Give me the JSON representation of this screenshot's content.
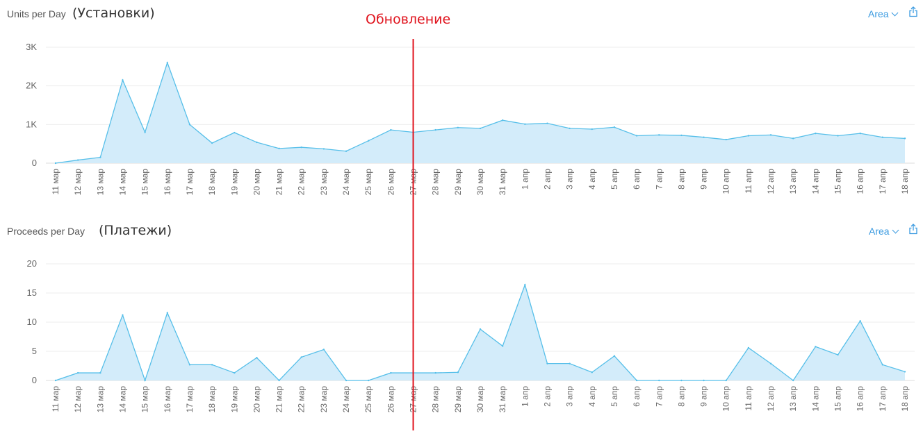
{
  "annotation": {
    "label": "Обновление",
    "at_category": "27 мар",
    "color": "#e0131d"
  },
  "controls": {
    "area_label": "Area"
  },
  "colors": {
    "line": "#56bfe9",
    "fill": "#d3ecfa",
    "grid": "#eeeeee"
  },
  "icons": {
    "chevron": "chevron-down-icon",
    "share": "share-icon"
  },
  "panels": [
    {
      "title": "Units per Day",
      "subtitle": "(Установки)"
    },
    {
      "title": "Proceeds per Day",
      "subtitle": "(Платежи)"
    }
  ],
  "chart_data": [
    {
      "type": "area",
      "title": "Units per Day",
      "subtitle": "(Установки)",
      "categories": [
        "11 мар",
        "12 мар",
        "13 мар",
        "14 мар",
        "15 мар",
        "16 мар",
        "17 мар",
        "18 мар",
        "19 мар",
        "20 мар",
        "21 мар",
        "22 мар",
        "23 мар",
        "24 мар",
        "25 мар",
        "26 мар",
        "27 мар",
        "28 мар",
        "29 мар",
        "30 мар",
        "31 мар",
        "1 апр",
        "2 апр",
        "3 апр",
        "4 апр",
        "5 апр",
        "6 апр",
        "7 апр",
        "8 апр",
        "9 апр",
        "10 апр",
        "11 апр",
        "12 апр",
        "13 апр",
        "14 апр",
        "15 апр",
        "16 апр",
        "17 апр",
        "18 апр"
      ],
      "values": [
        0,
        80,
        150,
        2150,
        800,
        2600,
        1000,
        520,
        790,
        540,
        380,
        410,
        370,
        310,
        580,
        860,
        800,
        860,
        920,
        900,
        1110,
        1010,
        1030,
        900,
        880,
        930,
        710,
        730,
        720,
        670,
        610,
        710,
        730,
        640,
        770,
        710,
        770,
        670,
        640
      ],
      "yticks": [
        0,
        1000,
        2000,
        3000
      ],
      "ytick_labels": [
        "0",
        "1K",
        "2K",
        "3K"
      ],
      "ylim": [
        0,
        3000
      ],
      "grid": true
    },
    {
      "type": "area",
      "title": "Proceeds per Day",
      "subtitle": "(Платежи)",
      "categories": [
        "11 мар",
        "12 мар",
        "13 мар",
        "14 мар",
        "15 мар",
        "16 мар",
        "17 мар",
        "18 мар",
        "19 мар",
        "20 мар",
        "21 мар",
        "22 мар",
        "23 мар",
        "24 мар",
        "25 мар",
        "26 мар",
        "27 мар",
        "28 мар",
        "29 мар",
        "30 мар",
        "31 мар",
        "1 апр",
        "2 апр",
        "3 апр",
        "4 апр",
        "5 апр",
        "6 апр",
        "7 апр",
        "8 апр",
        "9 апр",
        "10 апр",
        "11 апр",
        "12 апр",
        "13 апр",
        "14 апр",
        "15 апр",
        "16 апр",
        "17 апр",
        "18 апр"
      ],
      "values": [
        0,
        1.3,
        1.3,
        11.2,
        0,
        11.6,
        2.7,
        2.7,
        1.3,
        3.9,
        0,
        4.0,
        5.3,
        0,
        0,
        1.3,
        1.3,
        1.3,
        1.4,
        8.8,
        5.9,
        16.4,
        2.9,
        2.9,
        1.4,
        4.2,
        0,
        0,
        0,
        0,
        0,
        5.6,
        2.9,
        0,
        5.8,
        4.4,
        10.2,
        2.7,
        1.5
      ],
      "yticks": [
        0,
        5,
        10,
        15,
        20
      ],
      "ytick_labels": [
        "0",
        "5",
        "10",
        "15",
        "20"
      ],
      "ylim": [
        0,
        20
      ],
      "grid": true
    }
  ]
}
